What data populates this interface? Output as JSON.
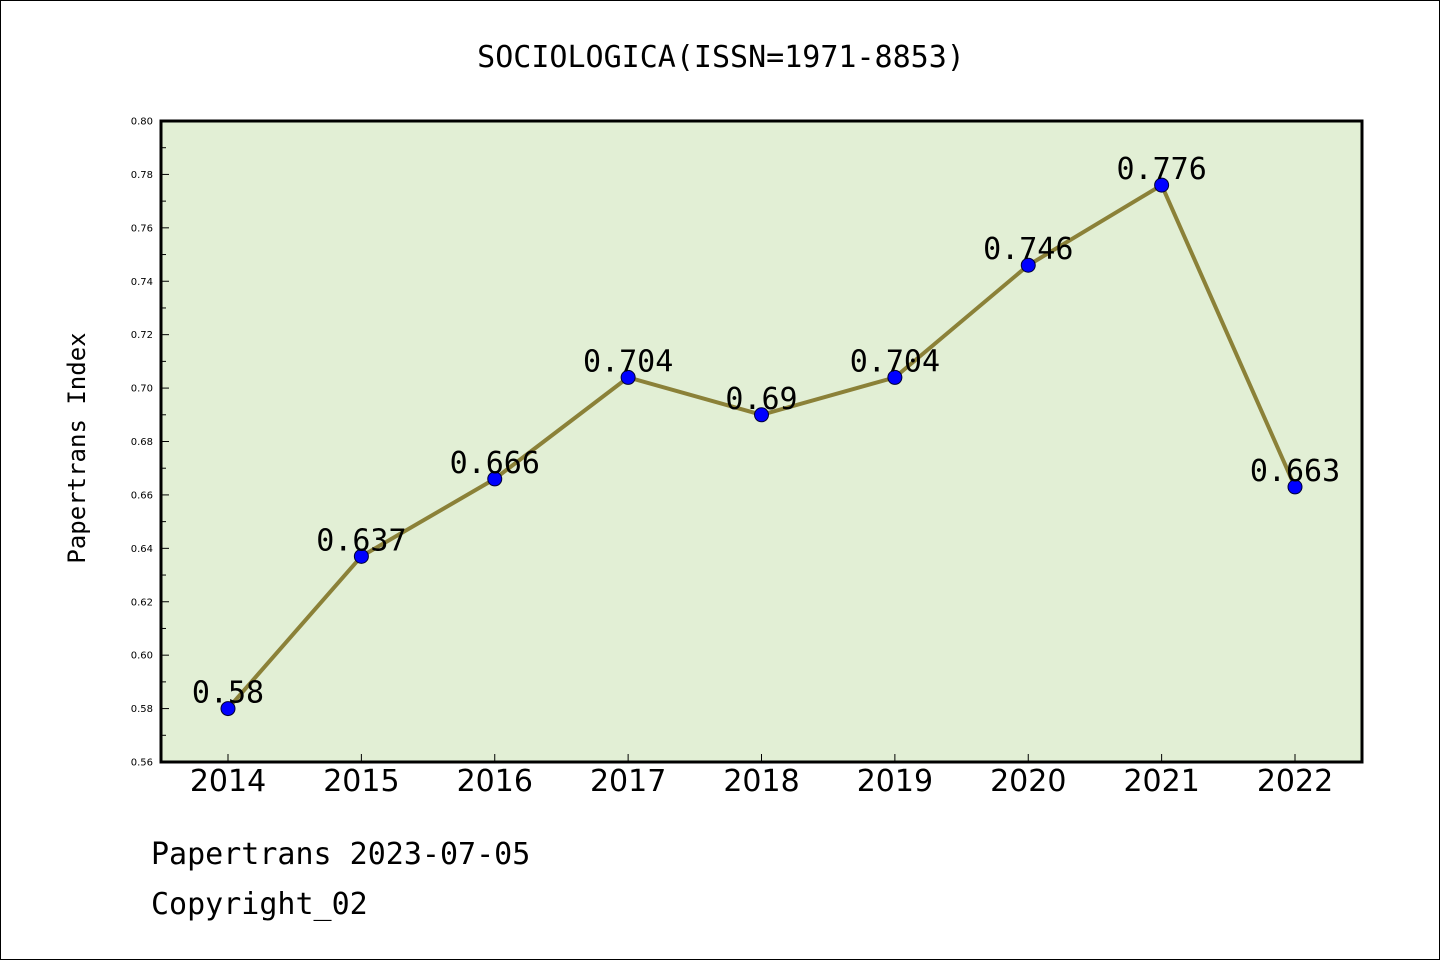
{
  "chart_data": {
    "type": "line",
    "title": "SOCIOLOGICA(ISSN=1971-8853)",
    "ylabel": "Papertrans Index",
    "xlabel": "",
    "categories": [
      "2014",
      "2015",
      "2016",
      "2017",
      "2018",
      "2019",
      "2020",
      "2021",
      "2022"
    ],
    "series": [
      {
        "values": [
          0.58,
          0.637,
          0.666,
          0.704,
          0.69,
          0.704,
          0.746,
          0.776,
          0.663
        ],
        "labels": [
          "0.58",
          "0.637",
          "0.666",
          "0.704",
          "0.69",
          "0.704",
          "0.746",
          "0.776",
          "0.663"
        ]
      }
    ],
    "ylim": [
      0.56,
      0.8
    ],
    "yticks": [
      "0.56",
      "0.58",
      "0.60",
      "0.62",
      "0.64",
      "0.66",
      "0.68",
      "0.70",
      "0.72",
      "0.74",
      "0.76",
      "0.78",
      "0.80"
    ],
    "grid": false,
    "colors": {
      "line": "#8b8138",
      "marker": "#0000ff",
      "plot_background": "#e2efd5"
    }
  },
  "footer": {
    "line1": "Papertrans 2023-07-05",
    "line2": "Copyright_02"
  }
}
